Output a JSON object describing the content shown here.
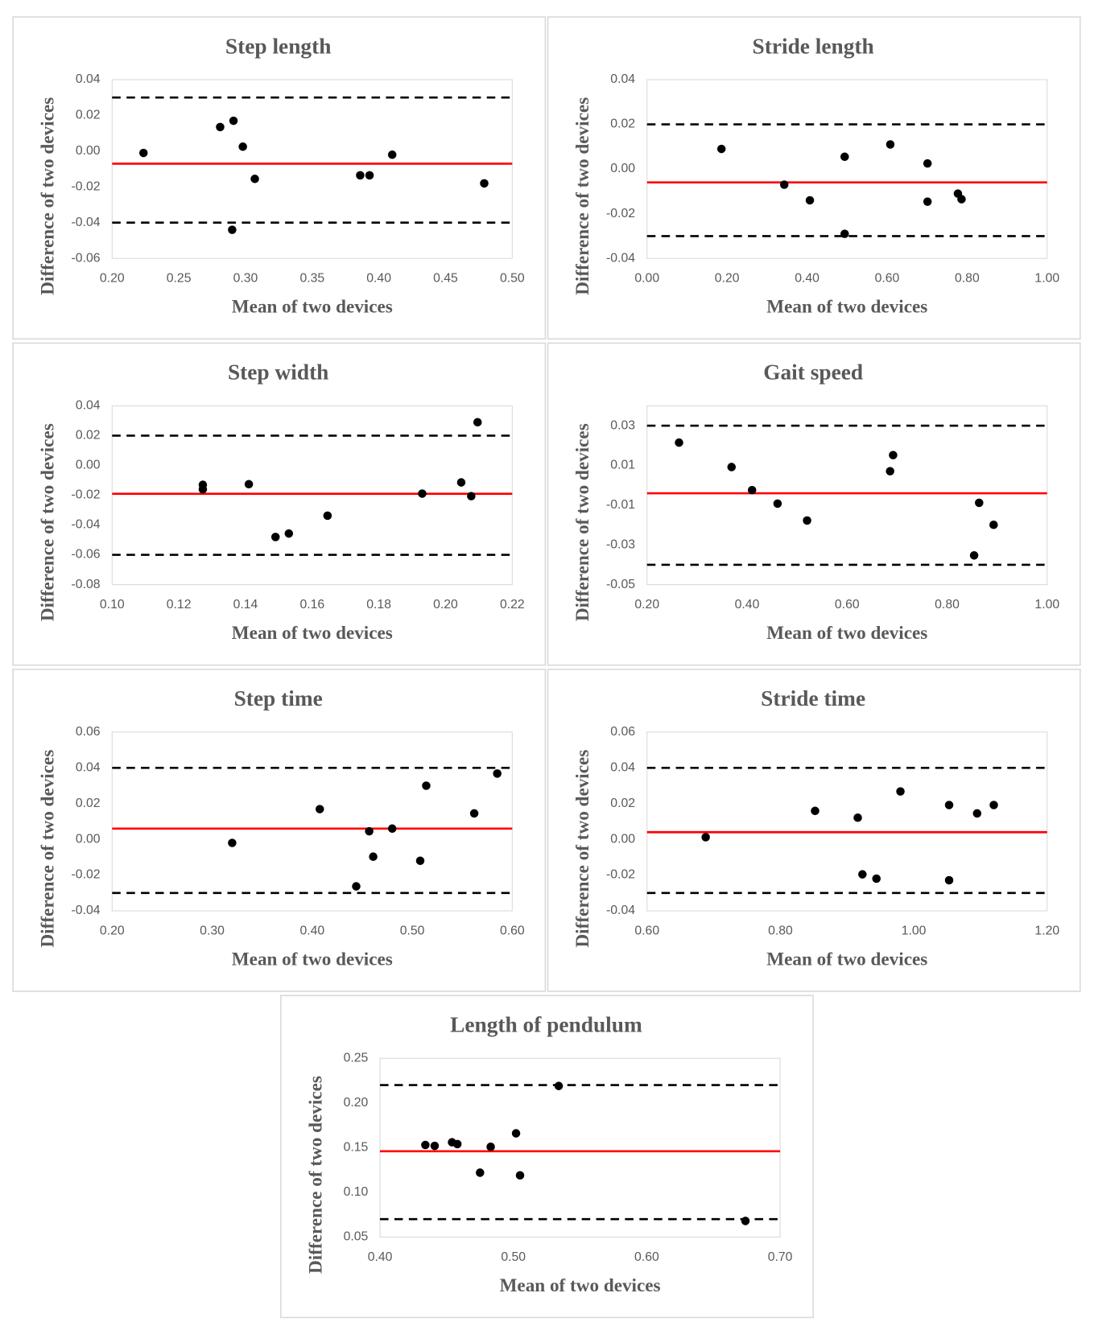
{
  "chart_data": [
    {
      "type": "scatter",
      "title": "Step length",
      "x_label": "Mean of two devices",
      "y_label": "Difference of two devices",
      "color": "#000000",
      "x": [
        0.2235,
        0.281,
        0.291,
        0.298,
        0.307,
        0.29,
        0.386,
        0.393,
        0.41,
        0.479
      ],
      "y": [
        -0.001,
        0.0135,
        0.017,
        0.0025,
        -0.0155,
        -0.044,
        -0.0135,
        -0.0135,
        -0.002,
        -0.018
      ],
      "xlim": [
        0.2,
        0.5
      ],
      "ylim": [
        -0.06,
        0.04
      ],
      "xticks": [
        {
          "value": 0.2,
          "label": "0.20"
        },
        0.25,
        {
          "value": 0.3,
          "label": "0.30"
        },
        0.35,
        {
          "value": 0.4,
          "label": "0.40"
        },
        0.45,
        {
          "value": 0.5,
          "label": "0.50"
        }
      ],
      "yticks": [
        0.04,
        0.02,
        {
          "value": 0,
          "label": "0.00"
        },
        -0.02,
        -0.04,
        -0.06
      ],
      "lines": [
        {
          "value": -0.007,
          "color": "#ff0000",
          "style": "solid"
        },
        {
          "value": 0.03,
          "color": "#000000",
          "style": "dashed"
        },
        {
          "value": -0.04,
          "color": "#000000",
          "style": "dashed"
        }
      ]
    },
    {
      "type": "scatter",
      "title": "Stride length",
      "x_label": "Mean of two devices",
      "y_label": "Difference of two devices",
      "color": "#000000",
      "x": [
        0.186,
        0.343,
        0.407,
        0.494,
        0.494,
        0.608,
        0.701,
        0.701,
        0.777,
        0.786
      ],
      "y": [
        0.009,
        -0.007,
        -0.014,
        0.0055,
        -0.029,
        0.011,
        0.0025,
        -0.0146,
        -0.011,
        -0.0135
      ],
      "xlim": [
        0,
        1
      ],
      "ylim": [
        -0.04,
        0.04
      ],
      "xticks": [
        {
          "value": 0,
          "label": "0.00"
        },
        {
          "value": 0.2,
          "label": "0.20"
        },
        {
          "value": 0.4,
          "label": "0.40"
        },
        {
          "value": 0.6,
          "label": "0.60"
        },
        {
          "value": 0.8,
          "label": "0.80"
        },
        {
          "value": 1,
          "label": "1.00"
        }
      ],
      "yticks": [
        0.04,
        0.02,
        {
          "value": 0,
          "label": "0.00"
        },
        -0.02,
        -0.04
      ],
      "lines": [
        {
          "value": -0.006,
          "color": "#ff0000",
          "style": "solid"
        },
        {
          "value": 0.02,
          "color": "#000000",
          "style": "dashed"
        },
        {
          "value": -0.03,
          "color": "#000000",
          "style": "dashed"
        }
      ]
    },
    {
      "type": "scatter",
      "title": "Step width",
      "x_label": "Mean of two devices",
      "y_label": "Difference of two devices",
      "color": "#000000",
      "x": [
        0.1272,
        0.1272,
        0.141,
        0.149,
        0.153,
        0.1646,
        0.193,
        0.2047,
        0.2077,
        0.2096
      ],
      "y": [
        -0.013,
        -0.016,
        -0.0126,
        -0.048,
        -0.0457,
        -0.0337,
        -0.0189,
        -0.0114,
        -0.0206,
        0.029
      ],
      "xlim": [
        0.1,
        0.22
      ],
      "ylim": [
        -0.08,
        0.04
      ],
      "xticks": [
        {
          "value": 0.1,
          "label": "0.10"
        },
        0.12,
        0.14,
        0.16,
        0.18,
        {
          "value": 0.2,
          "label": "0.20"
        },
        0.22
      ],
      "yticks": [
        0.04,
        0.02,
        {
          "value": 0,
          "label": "0.00"
        },
        -0.02,
        -0.04,
        -0.06,
        -0.08
      ],
      "lines": [
        {
          "value": -0.019,
          "color": "#ff0000",
          "style": "solid"
        },
        {
          "value": 0.02,
          "color": "#000000",
          "style": "dashed"
        },
        {
          "value": -0.06,
          "color": "#000000",
          "style": "dashed"
        }
      ]
    },
    {
      "type": "scatter",
      "title": "Gait speed",
      "x_label": "Mean of two devices",
      "y_label": "Difference of two devices",
      "color": "#000000",
      "x": [
        0.264,
        0.369,
        0.41,
        0.461,
        0.52,
        0.686,
        0.692,
        0.854,
        0.864,
        0.893
      ],
      "y": [
        0.0215,
        0.0092,
        -0.0024,
        -0.0092,
        -0.0177,
        0.0071,
        0.0152,
        -0.0353,
        -0.0088,
        -0.0199
      ],
      "xlim": [
        0.2,
        1
      ],
      "ylim": [
        -0.05,
        0.04
      ],
      "xticks": [
        {
          "value": 0.2,
          "label": "0.20"
        },
        {
          "value": 0.4,
          "label": "0.40"
        },
        {
          "value": 0.6,
          "label": "0.60"
        },
        {
          "value": 0.8,
          "label": "0.80"
        },
        {
          "value": 1,
          "label": "1.00"
        }
      ],
      "yticks": [
        0.03,
        0.01,
        -0.01,
        -0.03,
        -0.05
      ],
      "lines": [
        {
          "value": -0.004,
          "color": "#ff0000",
          "style": "solid"
        },
        {
          "value": 0.03,
          "color": "#000000",
          "style": "dashed"
        },
        {
          "value": -0.04,
          "color": "#000000",
          "style": "dashed"
        }
      ]
    },
    {
      "type": "scatter",
      "title": "Step time",
      "x_label": "Mean of two devices",
      "y_label": "Difference of two devices",
      "color": "#000000",
      "x": [
        0.32,
        0.4076,
        0.444,
        0.457,
        0.461,
        0.48,
        0.508,
        0.514,
        0.562,
        0.585
      ],
      "y": [
        -0.002,
        0.0169,
        -0.0263,
        0.0045,
        -0.0097,
        0.006,
        -0.012,
        0.03,
        0.0145,
        0.0368
      ],
      "xlim": [
        0.2,
        0.6
      ],
      "ylim": [
        -0.04,
        0.06
      ],
      "xticks": [
        {
          "value": 0.2,
          "label": "0.20"
        },
        {
          "value": 0.3,
          "label": "0.30"
        },
        {
          "value": 0.4,
          "label": "0.40"
        },
        {
          "value": 0.5,
          "label": "0.50"
        },
        {
          "value": 0.6,
          "label": "0.60"
        }
      ],
      "yticks": [
        0.06,
        0.04,
        0.02,
        {
          "value": 0,
          "label": "0.00"
        },
        -0.02,
        -0.04
      ],
      "lines": [
        {
          "value": 0.006,
          "color": "#ff0000",
          "style": "solid"
        },
        {
          "value": 0.04,
          "color": "#000000",
          "style": "dashed"
        },
        {
          "value": -0.03,
          "color": "#000000",
          "style": "dashed"
        }
      ]
    },
    {
      "type": "scatter",
      "title": "Stride time",
      "x_label": "Mean of two devices",
      "y_label": "Difference of two devices",
      "color": "#000000",
      "x": [
        0.688,
        0.852,
        0.916,
        0.923,
        0.944,
        0.98,
        1.053,
        1.053,
        1.095,
        1.12
      ],
      "y": [
        0.0012,
        0.0159,
        0.0121,
        -0.0196,
        -0.022,
        0.0268,
        0.0192,
        -0.0229,
        0.0145,
        0.0192
      ],
      "xlim": [
        0.6,
        1.2
      ],
      "ylim": [
        -0.04,
        0.06
      ],
      "xticks": [
        {
          "value": 0.6,
          "label": "0.60"
        },
        {
          "value": 0.8,
          "label": "0.80"
        },
        {
          "value": 1,
          "label": "1.00"
        },
        {
          "value": 1.2,
          "label": "1.20"
        }
      ],
      "yticks": [
        0.06,
        0.04,
        0.02,
        {
          "value": 0,
          "label": "0.00"
        },
        -0.02,
        -0.04
      ],
      "lines": [
        {
          "value": 0.004,
          "color": "#ff0000",
          "style": "solid"
        },
        {
          "value": 0.04,
          "color": "#000000",
          "style": "dashed"
        },
        {
          "value": -0.03,
          "color": "#000000",
          "style": "dashed"
        }
      ]
    },
    {
      "type": "scatter",
      "title": "Length of pendulum",
      "x_label": "Mean of two devices",
      "y_label": "Difference of two devices",
      "color": "#000000",
      "x": [
        0.434,
        0.441,
        0.454,
        0.458,
        0.475,
        0.483,
        0.502,
        0.505,
        0.534,
        0.674
      ],
      "y": [
        0.153,
        0.152,
        0.156,
        0.154,
        0.122,
        0.151,
        0.166,
        0.119,
        0.219,
        0.068
      ],
      "xlim": [
        0.4,
        0.7
      ],
      "ylim": [
        0.05,
        0.25
      ],
      "xticks": [
        {
          "value": 0.4,
          "label": "0.40"
        },
        {
          "value": 0.5,
          "label": "0.50"
        },
        {
          "value": 0.6,
          "label": "0.60"
        },
        {
          "value": 0.7,
          "label": "0.70"
        }
      ],
      "yticks": [
        0.25,
        {
          "value": 0.2,
          "label": "0.20"
        },
        0.15,
        {
          "value": 0.1,
          "label": "0.10"
        },
        0.05
      ],
      "lines": [
        {
          "value": 0.146,
          "color": "#ff0000",
          "style": "solid"
        },
        {
          "value": 0.22,
          "color": "#000000",
          "style": "dashed"
        },
        {
          "value": 0.07,
          "color": "#000000",
          "style": "dashed"
        }
      ]
    }
  ]
}
